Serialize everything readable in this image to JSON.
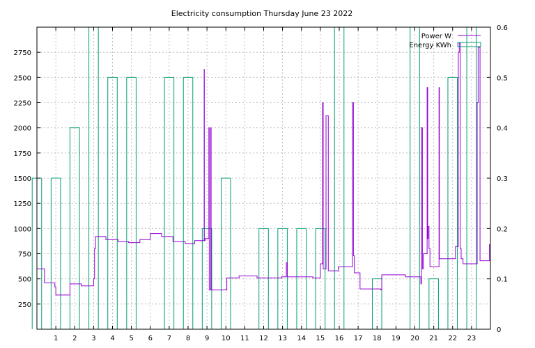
{
  "chart_data": {
    "type": "line",
    "title": "Electricity consumption Thursday June 23 2022",
    "x": {
      "min": 0,
      "max": 24,
      "ticks": [
        1,
        2,
        3,
        4,
        5,
        6,
        7,
        8,
        9,
        10,
        11,
        12,
        13,
        14,
        15,
        16,
        17,
        18,
        19,
        20,
        21,
        22,
        23
      ]
    },
    "y_left": {
      "min": 0,
      "max": 3000,
      "ticks": [
        250,
        500,
        750,
        1000,
        1250,
        1500,
        1750,
        2000,
        2250,
        2500,
        2750
      ]
    },
    "y_right": {
      "min": 0,
      "max": 0.6,
      "ticks": [
        0,
        0.1,
        0.2,
        0.3,
        0.4,
        0.5,
        0.6
      ]
    },
    "grid": true,
    "legend_position": "top-right",
    "colors": {
      "power": "#9400d3",
      "energy": "#009e73",
      "grid": "#b0b0b0"
    },
    "series": [
      {
        "name": "Energy KWh",
        "axis": "right",
        "style": "impulse-boxes",
        "x": [
          0,
          1,
          2,
          3,
          4,
          5,
          7,
          8,
          9,
          10,
          12,
          13,
          14,
          15,
          16,
          18,
          20,
          21,
          22,
          23
        ],
        "halfwidth": 0.25,
        "values": [
          0.3,
          0.3,
          0.4,
          0.6,
          0.5,
          0.5,
          0.5,
          0.5,
          0.2,
          0.3,
          0.2,
          0.2,
          0.2,
          0.2,
          0.6,
          0.1,
          0.6,
          0.1,
          0.5,
          0.6
        ]
      },
      {
        "name": "Power W",
        "axis": "left",
        "style": "line",
        "x": [
          0,
          0.35,
          0.4,
          0.9,
          0.95,
          1,
          1.7,
          1.75,
          2.3,
          2.35,
          2.95,
          3,
          3.05,
          3.1,
          3.6,
          3.65,
          4.25,
          4.3,
          4.8,
          4.85,
          5.4,
          5.45,
          5.95,
          6,
          6.55,
          6.6,
          7.15,
          7.2,
          7.8,
          7.85,
          8.3,
          8.35,
          8.8,
          8.85,
          8.86,
          8.9,
          8.92,
          9.1,
          9.12,
          9.15,
          9.2,
          9.22,
          9.25,
          10.0,
          10.05,
          10.65,
          10.7,
          11.6,
          11.65,
          12.9,
          12.95,
          13.2,
          13.25,
          14.55,
          14.6,
          14.95,
          15.0,
          15.08,
          15.12,
          15.15,
          15.2,
          15.3,
          15.42,
          15.45,
          15.5,
          15.9,
          15.95,
          16.65,
          16.7,
          16.75,
          16.8,
          17.05,
          17.1,
          18.0,
          18.05,
          18.2,
          18.25,
          19.45,
          19.5,
          20.3,
          20.32,
          20.35,
          20.4,
          20.45,
          20.5,
          20.65,
          20.68,
          20.7,
          20.75,
          20.8,
          20.85,
          20.9,
          21.25,
          21.28,
          21.3,
          21.35,
          21.85,
          21.9,
          22.15,
          22.2,
          22.3,
          22.35,
          22.4,
          22.45,
          22.55,
          22.6,
          23.25,
          23.3,
          23.35,
          23.45,
          23.5,
          23.9,
          23.95,
          24
        ],
        "values": [
          600,
          600,
          460,
          460,
          420,
          340,
          340,
          450,
          450,
          430,
          430,
          500,
          800,
          920,
          920,
          890,
          890,
          870,
          870,
          860,
          860,
          890,
          890,
          950,
          950,
          920,
          920,
          870,
          870,
          850,
          850,
          880,
          880,
          2580,
          880,
          900,
          900,
          2000,
          390,
          390,
          2000,
          390,
          390,
          390,
          510,
          510,
          530,
          530,
          510,
          510,
          520,
          660,
          520,
          520,
          510,
          510,
          650,
          650,
          2250,
          600,
          600,
          2120,
          580,
          580,
          580,
          580,
          620,
          620,
          2250,
          730,
          560,
          560,
          400,
          400,
          400,
          390,
          540,
          540,
          520,
          520,
          450,
          2000,
          600,
          750,
          750,
          2400,
          900,
          1020,
          800,
          620,
          620,
          620,
          620,
          2400,
          700,
          700,
          700,
          700,
          820,
          820,
          2750,
          2840,
          800,
          700,
          650,
          650,
          650,
          2250,
          2800,
          680,
          680,
          680,
          840,
          840
        ]
      }
    ]
  }
}
